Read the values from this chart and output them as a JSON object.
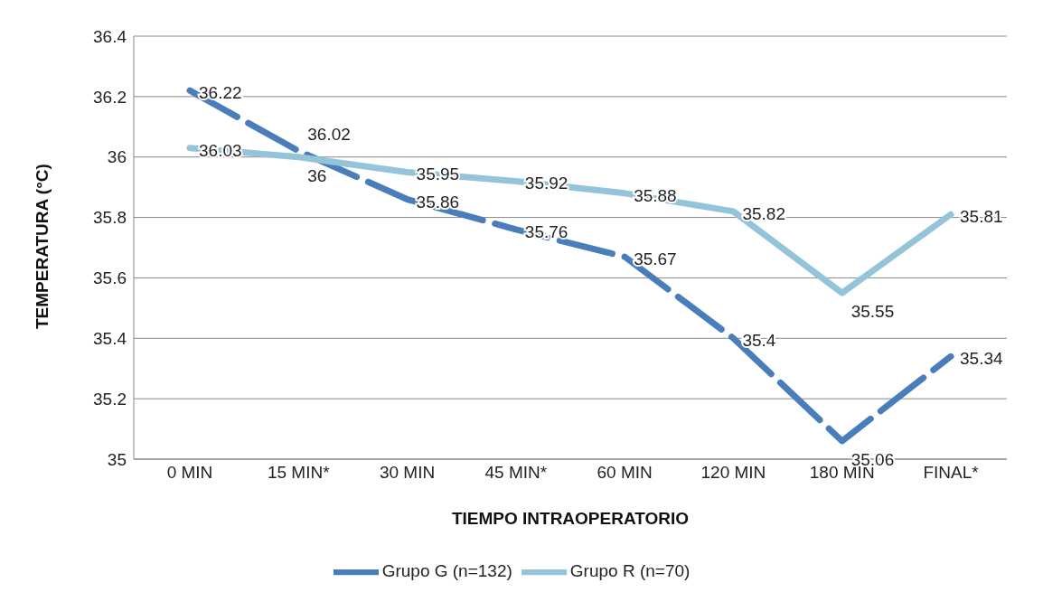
{
  "chart_data": {
    "type": "line",
    "xlabel": "TIEMPO INTRAOPERATORIO",
    "ylabel": "TEMPERATURA (°C)",
    "categories": [
      "0 MIN",
      "15 MIN*",
      "30 MIN",
      "45 MIN*",
      "60 MIN",
      "120 MIN",
      "180 MIN",
      "FINAL*"
    ],
    "series": [
      {
        "name": "Grupo G (n=132)",
        "color": "#4a7ebb",
        "line_style": "dashed",
        "values": [
          36.22,
          36.02,
          35.86,
          35.76,
          35.67,
          35.4,
          35.06,
          35.34
        ]
      },
      {
        "name": "Grupo R (n=70)",
        "color": "#93c4d9",
        "line_style": "solid",
        "values": [
          36.03,
          36,
          35.95,
          35.92,
          35.88,
          35.82,
          35.55,
          35.81
        ]
      }
    ],
    "ylim": [
      35,
      36.4
    ],
    "yticks": [
      35,
      35.2,
      35.4,
      35.6,
      35.8,
      36,
      36.2,
      36.4
    ],
    "grid": "y",
    "legend": "bottom",
    "data_labels": true,
    "marker": "none"
  }
}
